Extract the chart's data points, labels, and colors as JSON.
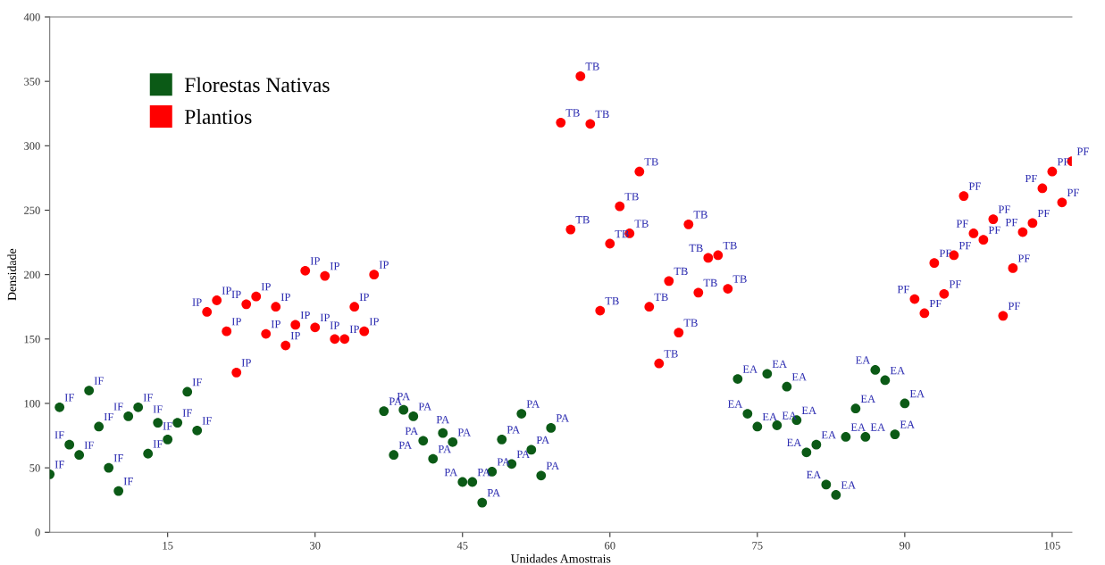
{
  "chart_data": {
    "type": "scatter",
    "xlabel": "Unidades Amostrais",
    "ylabel": "Densidade",
    "xlim": [
      3,
      107
    ],
    "xticks": [
      15,
      30,
      45,
      60,
      75,
      90,
      105
    ],
    "ylim": [
      0,
      400
    ],
    "yticks": [
      0,
      50,
      100,
      150,
      200,
      250,
      300,
      350,
      400
    ],
    "grid": false,
    "legend": "top left",
    "marker": "circle",
    "series": [
      {
        "name": "Florestas Nativas",
        "color": "#0b5a16",
        "x": [
          3,
          4,
          5,
          6,
          7,
          8,
          9,
          10,
          11,
          12,
          13,
          14,
          15,
          16,
          17,
          18,
          37,
          38,
          39,
          40,
          41,
          42,
          43,
          44,
          45,
          46,
          47,
          48,
          49,
          50,
          51,
          52,
          53,
          54,
          73,
          74,
          75,
          76,
          77,
          78,
          79,
          80,
          81,
          82,
          83,
          84,
          85,
          86,
          87,
          88,
          89,
          90
        ],
        "values": [
          45,
          97,
          68,
          60,
          110,
          82,
          50,
          32,
          90,
          97,
          61,
          85,
          72,
          85,
          109,
          79,
          94,
          60,
          95,
          90,
          71,
          57,
          77,
          70,
          39,
          39,
          23,
          47,
          72,
          53,
          92,
          64,
          44,
          81,
          119,
          92,
          82,
          123,
          83,
          113,
          87,
          62,
          68,
          37,
          29,
          74,
          96,
          74,
          126,
          118,
          76,
          100
        ]
      },
      {
        "name": "Plantios",
        "color": "#ff0000",
        "x": [
          19,
          20,
          21,
          22,
          23,
          24,
          25,
          26,
          27,
          28,
          29,
          30,
          31,
          32,
          33,
          34,
          35,
          36,
          55,
          56,
          57,
          58,
          59,
          60,
          61,
          62,
          63,
          64,
          65,
          66,
          67,
          68,
          69,
          70,
          71,
          72,
          91,
          92,
          93,
          94,
          95,
          96,
          97,
          98,
          99,
          100,
          101,
          102,
          103,
          104,
          105,
          106,
          107
        ],
        "values": [
          171,
          180,
          156,
          124,
          177,
          183,
          154,
          175,
          145,
          161,
          203,
          159,
          199,
          150,
          150,
          175,
          156,
          200,
          318,
          235,
          354,
          317,
          172,
          224,
          253,
          232,
          280,
          175,
          131,
          195,
          155,
          239,
          186,
          213,
          215,
          189,
          181,
          170,
          209,
          185,
          215,
          261,
          232,
          227,
          243,
          168,
          205,
          233,
          240,
          267,
          280,
          256,
          288
        ]
      }
    ],
    "annotations": [
      {
        "text": "IF",
        "x": 3,
        "y": 45
      },
      {
        "text": "IF",
        "x": 4,
        "y": 97
      },
      {
        "text": "IF",
        "x": 5,
        "y": 68
      },
      {
        "text": "IF",
        "x": 6,
        "y": 60
      },
      {
        "text": "IF",
        "x": 7,
        "y": 110
      },
      {
        "text": "IF",
        "x": 8,
        "y": 82
      },
      {
        "text": "IF",
        "x": 9,
        "y": 50
      },
      {
        "text": "IF",
        "x": 10,
        "y": 32
      },
      {
        "text": "IF",
        "x": 11,
        "y": 90
      },
      {
        "text": "IF",
        "x": 12,
        "y": 97
      },
      {
        "text": "IF",
        "x": 13,
        "y": 61
      },
      {
        "text": "IF",
        "x": 14,
        "y": 85
      },
      {
        "text": "IF",
        "x": 15,
        "y": 72
      },
      {
        "text": "IF",
        "x": 16,
        "y": 85
      },
      {
        "text": "IF",
        "x": 17,
        "y": 109
      },
      {
        "text": "IF",
        "x": 18,
        "y": 79
      },
      {
        "text": "IP",
        "x": 19,
        "y": 171
      },
      {
        "text": "IP",
        "x": 20,
        "y": 180
      },
      {
        "text": "IP",
        "x": 21,
        "y": 156
      },
      {
        "text": "IP",
        "x": 22,
        "y": 124
      },
      {
        "text": "IP",
        "x": 23,
        "y": 177
      },
      {
        "text": "IP",
        "x": 24,
        "y": 183
      },
      {
        "text": "IP",
        "x": 25,
        "y": 154
      },
      {
        "text": "IP",
        "x": 26,
        "y": 175
      },
      {
        "text": "IP",
        "x": 27,
        "y": 145
      },
      {
        "text": "IP",
        "x": 28,
        "y": 161
      },
      {
        "text": "IP",
        "x": 29,
        "y": 203
      },
      {
        "text": "IP",
        "x": 30,
        "y": 159
      },
      {
        "text": "IP",
        "x": 31,
        "y": 199
      },
      {
        "text": "IP",
        "x": 32,
        "y": 150
      },
      {
        "text": "IP",
        "x": 33,
        "y": 150
      },
      {
        "text": "IP",
        "x": 34,
        "y": 175
      },
      {
        "text": "IP",
        "x": 35,
        "y": 156
      },
      {
        "text": "IP",
        "x": 36,
        "y": 200
      },
      {
        "text": "PA",
        "x": 37,
        "y": 94
      },
      {
        "text": "PA",
        "x": 38,
        "y": 60
      },
      {
        "text": "PA",
        "x": 39,
        "y": 95
      },
      {
        "text": "PA",
        "x": 40,
        "y": 90
      },
      {
        "text": "PA",
        "x": 41,
        "y": 71
      },
      {
        "text": "PA",
        "x": 42,
        "y": 57
      },
      {
        "text": "PA",
        "x": 43,
        "y": 77
      },
      {
        "text": "PA",
        "x": 44,
        "y": 70
      },
      {
        "text": "PA",
        "x": 45,
        "y": 39
      },
      {
        "text": "PA",
        "x": 46,
        "y": 39
      },
      {
        "text": "PA",
        "x": 47,
        "y": 23
      },
      {
        "text": "PA",
        "x": 48,
        "y": 47
      },
      {
        "text": "PA",
        "x": 49,
        "y": 72
      },
      {
        "text": "PA",
        "x": 50,
        "y": 53
      },
      {
        "text": "PA",
        "x": 51,
        "y": 92
      },
      {
        "text": "PA",
        "x": 52,
        "y": 64
      },
      {
        "text": "PA",
        "x": 53,
        "y": 44
      },
      {
        "text": "PA",
        "x": 54,
        "y": 81
      },
      {
        "text": "TB",
        "x": 55,
        "y": 318
      },
      {
        "text": "TB",
        "x": 56,
        "y": 235
      },
      {
        "text": "TB",
        "x": 57,
        "y": 354
      },
      {
        "text": "TB",
        "x": 58,
        "y": 317
      },
      {
        "text": "TB",
        "x": 59,
        "y": 172
      },
      {
        "text": "TB",
        "x": 60,
        "y": 224
      },
      {
        "text": "TB",
        "x": 61,
        "y": 253
      },
      {
        "text": "TB",
        "x": 62,
        "y": 232
      },
      {
        "text": "TB",
        "x": 63,
        "y": 280
      },
      {
        "text": "TB",
        "x": 64,
        "y": 175
      },
      {
        "text": "TB",
        "x": 65,
        "y": 131
      },
      {
        "text": "TB",
        "x": 66,
        "y": 195
      },
      {
        "text": "TB",
        "x": 67,
        "y": 155
      },
      {
        "text": "TB",
        "x": 68,
        "y": 239
      },
      {
        "text": "TB",
        "x": 69,
        "y": 186
      },
      {
        "text": "TB",
        "x": 70,
        "y": 213
      },
      {
        "text": "TB",
        "x": 71,
        "y": 215
      },
      {
        "text": "TB",
        "x": 72,
        "y": 189
      },
      {
        "text": "EA",
        "x": 73,
        "y": 119
      },
      {
        "text": "EA",
        "x": 74,
        "y": 92
      },
      {
        "text": "EA",
        "x": 75,
        "y": 82
      },
      {
        "text": "EA",
        "x": 76,
        "y": 123
      },
      {
        "text": "EA",
        "x": 77,
        "y": 83
      },
      {
        "text": "EA",
        "x": 78,
        "y": 113
      },
      {
        "text": "EA",
        "x": 79,
        "y": 87
      },
      {
        "text": "EA",
        "x": 80,
        "y": 62
      },
      {
        "text": "EA",
        "x": 81,
        "y": 68
      },
      {
        "text": "EA",
        "x": 82,
        "y": 37
      },
      {
        "text": "EA",
        "x": 83,
        "y": 29
      },
      {
        "text": "EA",
        "x": 84,
        "y": 74
      },
      {
        "text": "EA",
        "x": 85,
        "y": 96
      },
      {
        "text": "EA",
        "x": 86,
        "y": 74
      },
      {
        "text": "EA",
        "x": 87,
        "y": 126
      },
      {
        "text": "EA",
        "x": 88,
        "y": 118
      },
      {
        "text": "EA",
        "x": 89,
        "y": 76
      },
      {
        "text": "EA",
        "x": 90,
        "y": 100
      },
      {
        "text": "PF",
        "x": 91,
        "y": 181
      },
      {
        "text": "PF",
        "x": 92,
        "y": 170
      },
      {
        "text": "PF",
        "x": 93,
        "y": 209
      },
      {
        "text": "PF",
        "x": 94,
        "y": 185
      },
      {
        "text": "PF",
        "x": 95,
        "y": 215
      },
      {
        "text": "PF",
        "x": 96,
        "y": 261
      },
      {
        "text": "PF",
        "x": 97,
        "y": 232
      },
      {
        "text": "PF",
        "x": 98,
        "y": 227
      },
      {
        "text": "PF",
        "x": 99,
        "y": 243
      },
      {
        "text": "PF",
        "x": 100,
        "y": 168
      },
      {
        "text": "PF",
        "x": 101,
        "y": 205
      },
      {
        "text": "PF",
        "x": 102,
        "y": 233
      },
      {
        "text": "PF",
        "x": 103,
        "y": 240
      },
      {
        "text": "PF",
        "x": 104,
        "y": 267
      },
      {
        "text": "PF",
        "x": 105,
        "y": 280
      },
      {
        "text": "PF",
        "x": 106,
        "y": 256
      },
      {
        "text": "PF",
        "x": 107,
        "y": 288
      }
    ]
  }
}
